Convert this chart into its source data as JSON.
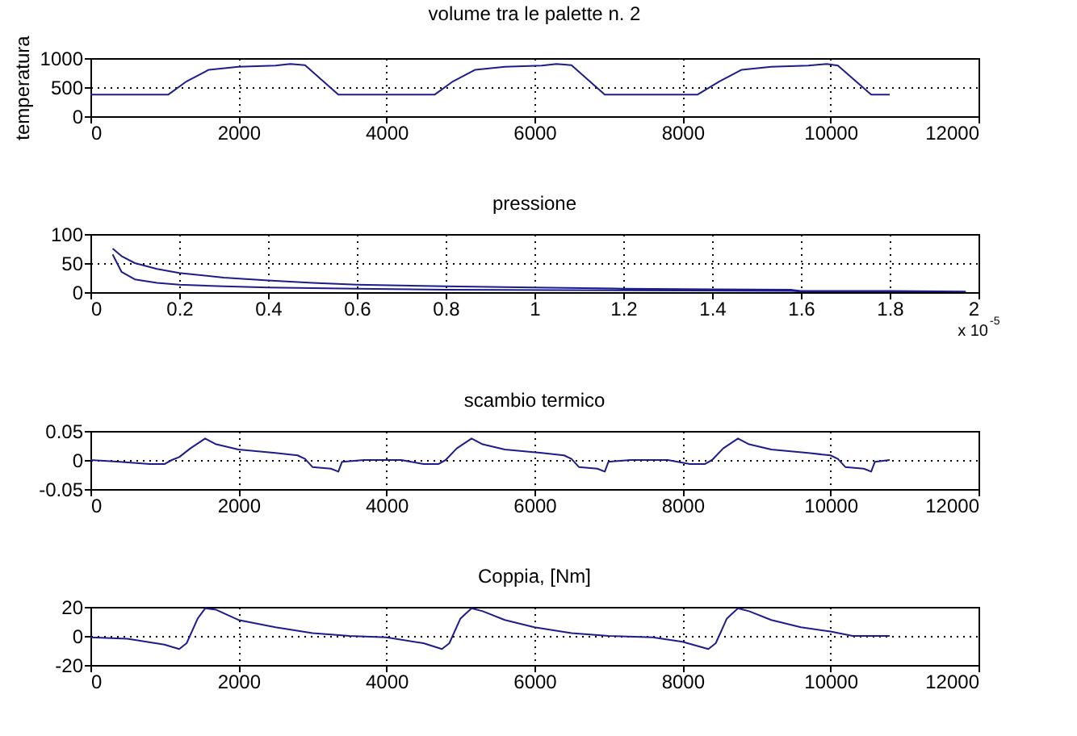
{
  "chart_data": [
    {
      "type": "line",
      "title": "volume tra le palette n. 2",
      "ylabel": "temperatura",
      "color": "#1c1c8c",
      "grid": true,
      "xlim": [
        0,
        12000
      ],
      "xticks": [
        0,
        2000,
        4000,
        6000,
        8000,
        10000,
        12000
      ],
      "ylim": [
        0,
        1000
      ],
      "yticks": [
        0,
        500,
        1000
      ],
      "x": [
        0,
        1050,
        1300,
        1600,
        2000,
        2500,
        2700,
        2900,
        3350,
        4650,
        4900,
        5200,
        5600,
        6100,
        6300,
        6500,
        6950,
        8200,
        8500,
        8800,
        9200,
        9700,
        9950,
        10100,
        10550,
        10800
      ],
      "values": [
        370,
        370,
        600,
        800,
        850,
        870,
        900,
        880,
        370,
        370,
        600,
        800,
        850,
        870,
        900,
        880,
        370,
        370,
        600,
        800,
        850,
        870,
        900,
        870,
        370,
        370
      ]
    },
    {
      "type": "line",
      "title": "pressione",
      "color": "#1c1c8c",
      "grid": true,
      "xlim": [
        0,
        2
      ],
      "xticks": [
        0,
        0.2,
        0.4,
        0.6,
        0.8,
        1,
        1.2,
        1.4,
        1.6,
        1.8,
        2
      ],
      "ylim": [
        0,
        100
      ],
      "yticks": [
        0,
        50,
        100
      ],
      "annotations": [
        "x 10$^{-5}$"
      ],
      "x": [
        0.05,
        0.07,
        0.1,
        0.15,
        0.2,
        0.3,
        0.4,
        0.5,
        0.6,
        0.8,
        1.0,
        1.2,
        1.4,
        1.58,
        1.6,
        1.8,
        1.97,
        1.97,
        1.6,
        1.58,
        1.2,
        0.8,
        0.6,
        0.4,
        0.3,
        0.2,
        0.15,
        0.1,
        0.07,
        0.05
      ],
      "values": [
        75,
        62,
        50,
        40,
        33,
        25,
        20,
        16,
        13,
        10,
        8,
        6,
        5,
        4,
        2,
        2,
        1,
        1,
        1,
        2,
        3,
        4,
        6,
        8,
        10,
        13,
        16,
        22,
        35,
        65
      ]
    },
    {
      "type": "line",
      "title": "scambio termico",
      "color": "#1c1c8c",
      "grid": true,
      "xlim": [
        0,
        12000
      ],
      "xticks": [
        0,
        2000,
        4000,
        6000,
        8000,
        10000,
        12000
      ],
      "ylim": [
        -0.05,
        0.05
      ],
      "yticks": [
        -0.05,
        0,
        0.05
      ],
      "x": [
        0,
        400,
        800,
        1000,
        1100,
        1200,
        1350,
        1550,
        1700,
        2000,
        2500,
        2800,
        2900,
        3000,
        3250,
        3350,
        3400,
        3700,
        4200,
        4500,
        4700,
        4800,
        4950,
        5150,
        5300,
        5600,
        6100,
        6400,
        6500,
        6600,
        6850,
        6950,
        7000,
        7300,
        7800,
        8100,
        8300,
        8400,
        8550,
        8750,
        8900,
        9200,
        9700,
        10000,
        10100,
        10200,
        10450,
        10550,
        10600,
        10800
      ],
      "values": [
        0,
        -0.003,
        -0.007,
        -0.007,
        0,
        0.005,
        0.02,
        0.037,
        0.027,
        0.018,
        0.012,
        0.008,
        0.002,
        -0.012,
        -0.015,
        -0.02,
        -0.003,
        0,
        0,
        -0.007,
        -0.007,
        0,
        0.02,
        0.037,
        0.027,
        0.018,
        0.012,
        0.008,
        0.002,
        -0.012,
        -0.015,
        -0.02,
        -0.003,
        0,
        0,
        -0.007,
        -0.007,
        0,
        0.02,
        0.037,
        0.027,
        0.018,
        0.012,
        0.008,
        0.002,
        -0.012,
        -0.015,
        -0.02,
        -0.003,
        0
      ]
    },
    {
      "type": "line",
      "title": "Coppia, [Nm]",
      "color": "#1c1c8c",
      "grid": true,
      "xlim": [
        0,
        12000
      ],
      "xticks": [
        0,
        2000,
        4000,
        6000,
        8000,
        10000,
        12000
      ],
      "ylim": [
        -20,
        20
      ],
      "yticks": [
        -20,
        0,
        20
      ],
      "x": [
        0,
        500,
        1000,
        1200,
        1300,
        1450,
        1550,
        1700,
        2000,
        2500,
        3000,
        3500,
        4000,
        4500,
        4750,
        4850,
        5000,
        5150,
        5300,
        5600,
        6000,
        6500,
        7000,
        7600,
        8000,
        8350,
        8450,
        8600,
        8750,
        8900,
        9200,
        9600,
        10000,
        10300,
        10800
      ],
      "values": [
        -1,
        -2,
        -6,
        -9,
        -5,
        12,
        19,
        18,
        11,
        6,
        2,
        0,
        -1,
        -5,
        -9,
        -5,
        12,
        19,
        17,
        11,
        6,
        2,
        0,
        -1,
        -4,
        -9,
        -5,
        12,
        19,
        17,
        11,
        6,
        3,
        0,
        0
      ]
    }
  ]
}
